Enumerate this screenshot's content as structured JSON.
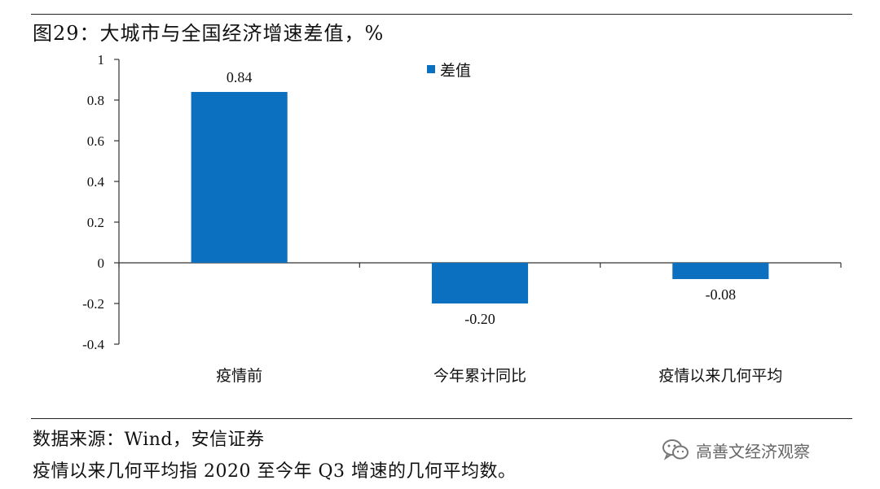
{
  "title": "图29：大城市与全国经济增速差值，%",
  "chart_data": {
    "type": "bar",
    "categories": [
      "疫情前",
      "今年累计同比",
      "疫情以来几何平均"
    ],
    "series": [
      {
        "name": "差值",
        "values": [
          0.84,
          -0.2,
          -0.08
        ],
        "labels": [
          "0.84",
          "-0.20",
          "-0.08"
        ],
        "color": "#0b70c0"
      }
    ],
    "ylim": [
      -0.4,
      1
    ],
    "yticks": [
      1,
      0.8,
      0.6,
      0.4,
      0.2,
      0,
      -0.2,
      -0.4
    ],
    "ytick_labels": [
      "1",
      "0.8",
      "0.6",
      "0.4",
      "0.2",
      "0",
      "-0.2",
      "-0.4"
    ],
    "legend_position": "top-center",
    "grid": false
  },
  "source": "数据来源：Wind，安信证券",
  "footnote": "疫情以来几何平均指 2020 至今年 Q3 增速的几何平均数。",
  "watermark": {
    "text": "高善文经济观察",
    "icon": "wechat-icon"
  }
}
